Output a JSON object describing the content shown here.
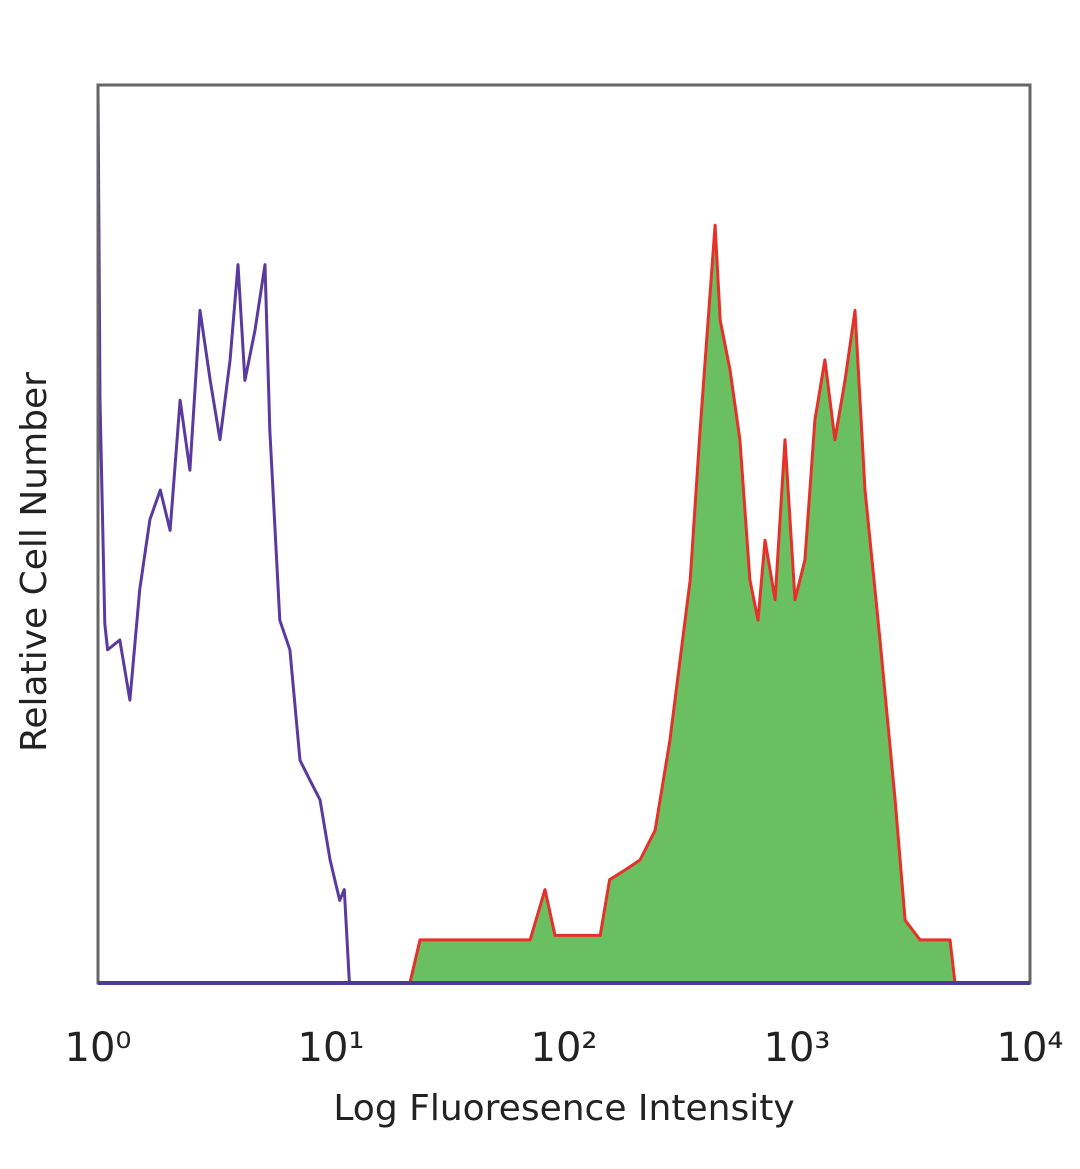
{
  "chart_data": {
    "type": "histogram-overlay",
    "x_label": "Log Fluoresence Intensity",
    "y_label": "Relative Cell Number",
    "xscale": "log",
    "xlim": [
      1,
      10000
    ],
    "xticks": [
      {
        "value": 1,
        "label": "10⁰"
      },
      {
        "value": 10,
        "label": "10¹"
      },
      {
        "value": 100,
        "label": "10²"
      },
      {
        "value": 1000,
        "label": "10³"
      },
      {
        "value": 10000,
        "label": "10⁴"
      }
    ],
    "ylim": [
      0,
      100
    ],
    "series": [
      {
        "color": "#5b3aa0",
        "fill": "none",
        "x": [
          1,
          1,
          1.02,
          1.07,
          1.1,
          1.24,
          1.37,
          1.51,
          1.67,
          1.85,
          2.04,
          2.25,
          2.48,
          2.74,
          3.03,
          3.34,
          3.69,
          3.99,
          4.27,
          4.72,
          5.21,
          5.46,
          6.03,
          6.66,
          7.36,
          8.12,
          8.97,
          9.91,
          10.9,
          11.4,
          12.0
        ],
        "values": [
          0,
          100,
          64.9,
          40,
          37.1,
          38.2,
          31.5,
          43.8,
          51.6,
          54.9,
          50.4,
          64.9,
          57.1,
          74.9,
          67.1,
          60.5,
          69.4,
          80.0,
          67.1,
          72.7,
          80.0,
          61.6,
          40.4,
          37.1,
          24.8,
          22.6,
          20.4,
          13.7,
          9.2,
          10.4,
          0
        ]
      },
      {
        "color": "#e8302a",
        "fill": "#6abf60",
        "x": [
          21.8,
          24.1,
          29.4,
          71.5,
          82.9,
          91.5,
          143,
          157,
          183,
          212,
          246,
          285,
          348,
          384,
          445,
          468,
          516,
          569,
          628,
          680,
          729,
          805,
          888,
          980,
          1081,
          1193,
          1318,
          1455,
          1607,
          1774,
          1959,
          2270,
          2636,
          2910,
          3375,
          4538,
          4764
        ],
        "values": [
          0,
          4.8,
          4.8,
          4.8,
          10.4,
          5.3,
          5.3,
          11.5,
          12.6,
          13.7,
          17.0,
          27.1,
          44.9,
          61.6,
          84.4,
          73.8,
          68.3,
          60.5,
          44.9,
          40.4,
          49.3,
          42.7,
          60.5,
          42.7,
          47.1,
          62.7,
          69.4,
          60.5,
          67.1,
          74.9,
          54.9,
          38.2,
          20.4,
          7.0,
          4.8,
          4.8,
          0
        ]
      }
    ]
  }
}
